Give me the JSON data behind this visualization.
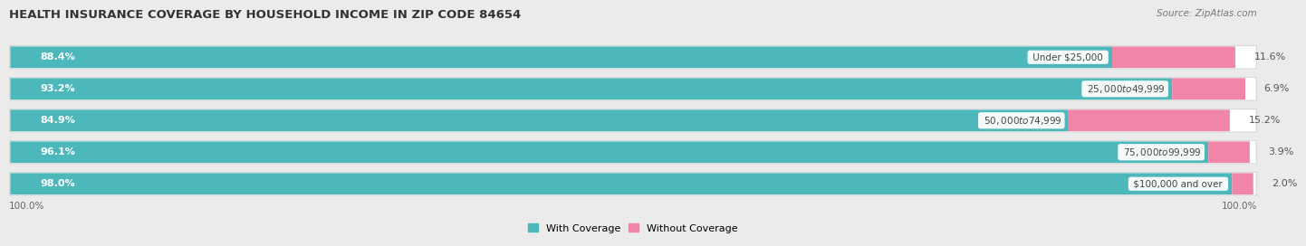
{
  "title": "HEALTH INSURANCE COVERAGE BY HOUSEHOLD INCOME IN ZIP CODE 84654",
  "source": "Source: ZipAtlas.com",
  "categories": [
    "Under $25,000",
    "$25,000 to $49,999",
    "$50,000 to $74,999",
    "$75,000 to $99,999",
    "$100,000 and over"
  ],
  "with_coverage": [
    88.4,
    93.2,
    84.9,
    96.1,
    98.0
  ],
  "without_coverage": [
    11.6,
    6.9,
    15.2,
    3.9,
    2.0
  ],
  "color_with": "#4db8bc",
  "color_without": "#f085a8",
  "bg_color": "#ebebeb",
  "bar_bg_color": "#ffffff",
  "row_bg_color": "#f5f5f5",
  "title_fontsize": 9.5,
  "label_fontsize": 8.0,
  "tick_fontsize": 7.5,
  "legend_fontsize": 8.0,
  "bar_height": 0.68,
  "source_fontsize": 7.5
}
